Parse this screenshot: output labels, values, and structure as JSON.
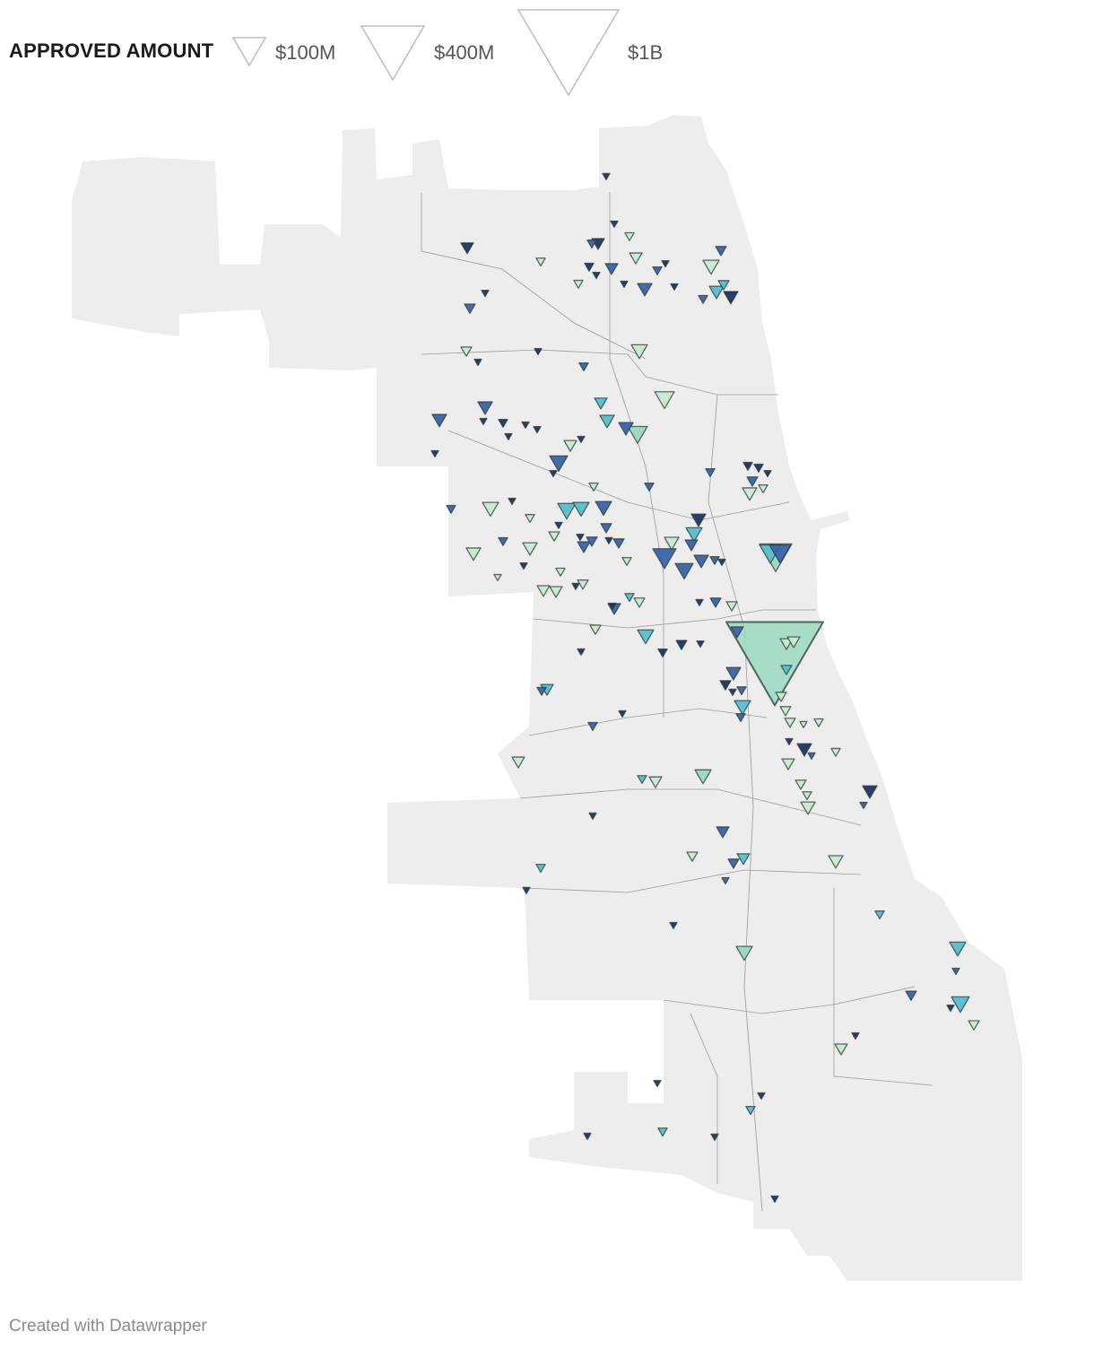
{
  "legend": {
    "title": "APPROVED AMOUNT",
    "items": [
      {
        "label": "$100M",
        "amt": 100
      },
      {
        "label": "$400M",
        "amt": 400
      },
      {
        "label": "$1B",
        "amt": 1000
      }
    ],
    "stroke_color": "#bdbdbd"
  },
  "map": {
    "land_color": "#ededed",
    "boundary_color": "#9a9a9a",
    "marker_stroke": "#2b3a3a",
    "palette": [
      "#1e3461",
      "#3a63a6",
      "#58bfcc",
      "#c8ebcf",
      "#9ad9bf"
    ],
    "markers": [
      {
        "lon": -87.7008,
        "lat": 41.9862,
        "amt": 5,
        "color": "#1e3461"
      },
      {
        "lon": -87.6972,
        "lat": 41.9706,
        "amt": 5,
        "color": "#1e3461"
      },
      {
        "lon": -87.7628,
        "lat": 41.9627,
        "amt": 15,
        "color": "#1e3461"
      },
      {
        "lon": -87.7044,
        "lat": 41.9641,
        "amt": 15,
        "color": "#1e3461"
      },
      {
        "lon": -87.7072,
        "lat": 41.9641,
        "amt": 8,
        "color": "#3a63a6"
      },
      {
        "lon": -87.6904,
        "lat": 41.9665,
        "amt": 8,
        "color": "#c8ebcf"
      },
      {
        "lon": -87.73,
        "lat": 41.9582,
        "amt": 8,
        "color": "#c8ebcf"
      },
      {
        "lon": -87.6876,
        "lat": 41.9594,
        "amt": 15,
        "color": "#c8ebcf"
      },
      {
        "lon": -87.6984,
        "lat": 41.9559,
        "amt": 15,
        "color": "#3a63a6"
      },
      {
        "lon": -87.7084,
        "lat": 41.9565,
        "amt": 8,
        "color": "#1e3461"
      },
      {
        "lon": -87.6744,
        "lat": 41.9576,
        "amt": 5,
        "color": "#1e3461"
      },
      {
        "lon": -87.678,
        "lat": 41.9553,
        "amt": 8,
        "color": "#3a63a6"
      },
      {
        "lon": -87.654,
        "lat": 41.9565,
        "amt": 25,
        "color": "#c8ebcf"
      },
      {
        "lon": -87.6496,
        "lat": 41.9618,
        "amt": 11,
        "color": "#3a63a6"
      },
      {
        "lon": -87.6484,
        "lat": 41.9506,
        "amt": 11,
        "color": "#58bfcc"
      },
      {
        "lon": -87.6836,
        "lat": 41.9491,
        "amt": 20,
        "color": "#3a63a6"
      },
      {
        "lon": -87.6704,
        "lat": 41.95,
        "amt": 5,
        "color": "#1e3461"
      },
      {
        "lon": -87.6928,
        "lat": 41.9509,
        "amt": 5,
        "color": "#1e3461"
      },
      {
        "lon": -87.7052,
        "lat": 41.9538,
        "amt": 5,
        "color": "#1e3461"
      },
      {
        "lon": -87.7132,
        "lat": 41.9509,
        "amt": 8,
        "color": "#c8ebcf"
      },
      {
        "lon": -87.6516,
        "lat": 41.9482,
        "amt": 20,
        "color": "#58bfcc"
      },
      {
        "lon": -87.6452,
        "lat": 41.9465,
        "amt": 20,
        "color": "#1e3461"
      },
      {
        "lon": -87.6576,
        "lat": 41.9459,
        "amt": 8,
        "color": "#3a63a6"
      },
      {
        "lon": -87.7548,
        "lat": 41.9479,
        "amt": 5,
        "color": "#1e3461"
      },
      {
        "lon": -87.7616,
        "lat": 41.9429,
        "amt": 11,
        "color": "#3a63a6"
      },
      {
        "lon": -87.686,
        "lat": 41.9288,
        "amt": 25,
        "color": "#c8ebcf"
      },
      {
        "lon": -87.7312,
        "lat": 41.9288,
        "amt": 5,
        "color": "#1e3461"
      },
      {
        "lon": -87.7632,
        "lat": 41.9288,
        "amt": 11,
        "color": "#c8ebcf"
      },
      {
        "lon": -87.758,
        "lat": 41.9253,
        "amt": 5,
        "color": "#1e3461"
      },
      {
        "lon": -87.7108,
        "lat": 41.9238,
        "amt": 8,
        "color": "#3a63a6"
      },
      {
        "lon": -87.6748,
        "lat": 41.9129,
        "amt": 37,
        "color": "#c8ebcf"
      },
      {
        "lon": -87.7548,
        "lat": 41.9103,
        "amt": 20,
        "color": "#3a63a6"
      },
      {
        "lon": -87.7032,
        "lat": 41.9118,
        "amt": 15,
        "color": "#58bfcc"
      },
      {
        "lon": -87.7752,
        "lat": 41.9062,
        "amt": 20,
        "color": "#3a63a6"
      },
      {
        "lon": -87.7468,
        "lat": 41.9053,
        "amt": 8,
        "color": "#1e3461"
      },
      {
        "lon": -87.7556,
        "lat": 41.9059,
        "amt": 5,
        "color": "#1e3461"
      },
      {
        "lon": -87.7004,
        "lat": 41.9059,
        "amt": 20,
        "color": "#58bfcc"
      },
      {
        "lon": -87.692,
        "lat": 41.9035,
        "amt": 20,
        "color": "#3a63a6"
      },
      {
        "lon": -87.6868,
        "lat": 41.9015,
        "amt": 37,
        "color": "#9ad9bf"
      },
      {
        "lon": -87.7368,
        "lat": 41.9047,
        "amt": 5,
        "color": "#1e3461"
      },
      {
        "lon": -87.7444,
        "lat": 41.9009,
        "amt": 5,
        "color": "#1e3461"
      },
      {
        "lon": -87.7316,
        "lat": 41.9032,
        "amt": 5,
        "color": "#1e3461"
      },
      {
        "lon": -87.7168,
        "lat": 41.8979,
        "amt": 15,
        "color": "#c8ebcf"
      },
      {
        "lon": -87.712,
        "lat": 41.9,
        "amt": 5,
        "color": "#1e3461"
      },
      {
        "lon": -87.7772,
        "lat": 41.8953,
        "amt": 5,
        "color": "#1e3461"
      },
      {
        "lon": -87.722,
        "lat": 41.8921,
        "amt": 31,
        "color": "#3a63a6"
      },
      {
        "lon": -87.7244,
        "lat": 41.8888,
        "amt": 5,
        "color": "#1e3461"
      },
      {
        "lon": -87.6544,
        "lat": 41.8891,
        "amt": 8,
        "color": "#3a63a6"
      },
      {
        "lon": -87.6376,
        "lat": 41.8912,
        "amt": 8,
        "color": "#1e3461"
      },
      {
        "lon": -87.6328,
        "lat": 41.8906,
        "amt": 8,
        "color": "#1e3461"
      },
      {
        "lon": -87.6288,
        "lat": 41.8888,
        "amt": 5,
        "color": "#1e3461"
      },
      {
        "lon": -87.6356,
        "lat": 41.8862,
        "amt": 11,
        "color": "#3a63a6"
      },
      {
        "lon": -87.6368,
        "lat": 41.8821,
        "amt": 20,
        "color": "#c8ebcf"
      },
      {
        "lon": -87.6308,
        "lat": 41.8838,
        "amt": 8,
        "color": "#c8ebcf"
      },
      {
        "lon": -87.7064,
        "lat": 41.8844,
        "amt": 8,
        "color": "#c8ebcf"
      },
      {
        "lon": -87.6816,
        "lat": 41.8844,
        "amt": 8,
        "color": "#3a63a6"
      },
      {
        "lon": -87.77,
        "lat": 41.8771,
        "amt": 8,
        "color": "#3a63a6"
      },
      {
        "lon": -87.7524,
        "lat": 41.8771,
        "amt": 25,
        "color": "#c8ebcf"
      },
      {
        "lon": -87.7184,
        "lat": 41.8765,
        "amt": 31,
        "color": "#58bfcc"
      },
      {
        "lon": -87.712,
        "lat": 41.8771,
        "amt": 25,
        "color": "#58bfcc"
      },
      {
        "lon": -87.702,
        "lat": 41.8774,
        "amt": 25,
        "color": "#3a63a6"
      },
      {
        "lon": -87.6596,
        "lat": 41.8735,
        "amt": 20,
        "color": "#1e3461"
      },
      {
        "lon": -87.7428,
        "lat": 41.8797,
        "amt": 5,
        "color": "#1e3461"
      },
      {
        "lon": -87.7348,
        "lat": 41.8741,
        "amt": 8,
        "color": "#c8ebcf"
      },
      {
        "lon": -87.722,
        "lat": 41.8718,
        "amt": 5,
        "color": "#1e3461"
      },
      {
        "lon": -87.724,
        "lat": 41.8682,
        "amt": 11,
        "color": "#c8ebcf"
      },
      {
        "lon": -87.7008,
        "lat": 41.8709,
        "amt": 11,
        "color": "#3a63a6"
      },
      {
        "lon": -87.7124,
        "lat": 41.8679,
        "amt": 5,
        "color": "#1e3461"
      },
      {
        "lon": -87.7468,
        "lat": 41.8665,
        "amt": 8,
        "color": "#3a63a6"
      },
      {
        "lon": -87.7348,
        "lat": 41.8641,
        "amt": 20,
        "color": "#c8ebcf"
      },
      {
        "lon": -87.7108,
        "lat": 41.8647,
        "amt": 15,
        "color": "#3a63a6"
      },
      {
        "lon": -87.7072,
        "lat": 41.8665,
        "amt": 11,
        "color": "#3a63a6"
      },
      {
        "lon": -87.6952,
        "lat": 41.8659,
        "amt": 11,
        "color": "#3a63a6"
      },
      {
        "lon": -87.6996,
        "lat": 41.8668,
        "amt": 5,
        "color": "#1e3461"
      },
      {
        "lon": -87.6748,
        "lat": 41.8609,
        "amt": 52,
        "color": "#3a63a6"
      },
      {
        "lon": -87.666,
        "lat": 41.8568,
        "amt": 31,
        "color": "#3a63a6"
      },
      {
        "lon": -87.6716,
        "lat": 41.8659,
        "amt": 20,
        "color": "#c8ebcf"
      },
      {
        "lon": -87.6616,
        "lat": 41.8688,
        "amt": 25,
        "color": "#58bfcc"
      },
      {
        "lon": -87.6628,
        "lat": 41.8653,
        "amt": 15,
        "color": "#3a63a6"
      },
      {
        "lon": -87.6584,
        "lat": 41.86,
        "amt": 20,
        "color": "#3a63a6"
      },
      {
        "lon": -87.6524,
        "lat": 41.8603,
        "amt": 8,
        "color": "#3a63a6"
      },
      {
        "lon": -87.6492,
        "lat": 41.8597,
        "amt": 5,
        "color": "#1e3461"
      },
      {
        "lon": -87.76,
        "lat": 41.8624,
        "amt": 20,
        "color": "#c8ebcf"
      },
      {
        "lon": -87.7376,
        "lat": 41.8585,
        "amt": 5,
        "color": "#1e3461"
      },
      {
        "lon": -87.7212,
        "lat": 41.8565,
        "amt": 8,
        "color": "#c8ebcf"
      },
      {
        "lon": -87.6916,
        "lat": 41.86,
        "amt": 8,
        "color": "#c8ebcf"
      },
      {
        "lon": -87.7492,
        "lat": 41.8547,
        "amt": 5,
        "color": "#c8ebcf"
      },
      {
        "lon": -87.7288,
        "lat": 41.8503,
        "amt": 15,
        "color": "#c8ebcf"
      },
      {
        "lon": -87.7232,
        "lat": 41.85,
        "amt": 15,
        "color": "#c8ebcf"
      },
      {
        "lon": -87.7112,
        "lat": 41.8524,
        "amt": 11,
        "color": "#c8ebcf"
      },
      {
        "lon": -87.7144,
        "lat": 41.8518,
        "amt": 5,
        "color": "#1e3461"
      },
      {
        "lon": -87.6252,
        "lat": 41.8612,
        "amt": 100,
        "color": "#9ad9bf"
      },
      {
        "lon": -87.6276,
        "lat": 41.8624,
        "amt": 44,
        "color": "#58bfcc"
      },
      {
        "lon": -87.6232,
        "lat": 41.8624,
        "amt": 44,
        "color": "#3a63a6"
      },
      {
        "lon": -87.6904,
        "lat": 41.8482,
        "amt": 8,
        "color": "#58bfcc"
      },
      {
        "lon": -87.686,
        "lat": 41.8465,
        "amt": 11,
        "color": "#c8ebcf"
      },
      {
        "lon": -87.6972,
        "lat": 41.8444,
        "amt": 15,
        "color": "#3a63a6"
      },
      {
        "lon": -87.698,
        "lat": 41.8453,
        "amt": 5,
        "color": "#1e3461"
      },
      {
        "lon": -87.652,
        "lat": 41.8465,
        "amt": 11,
        "color": "#3a63a6"
      },
      {
        "lon": -87.6592,
        "lat": 41.8465,
        "amt": 5,
        "color": "#1e3461"
      },
      {
        "lon": -87.6448,
        "lat": 41.8453,
        "amt": 11,
        "color": "#c8ebcf"
      },
      {
        "lon": -87.7056,
        "lat": 41.8376,
        "amt": 11,
        "color": "#c8ebcf"
      },
      {
        "lon": -87.6832,
        "lat": 41.8353,
        "amt": 25,
        "color": "#58bfcc"
      },
      {
        "lon": -87.6672,
        "lat": 41.8326,
        "amt": 11,
        "color": "#1e3461"
      },
      {
        "lon": -87.6588,
        "lat": 41.8329,
        "amt": 5,
        "color": "#1e3461"
      },
      {
        "lon": -87.6756,
        "lat": 41.83,
        "amt": 8,
        "color": "#1e3461"
      },
      {
        "lon": -87.712,
        "lat": 41.8303,
        "amt": 5,
        "color": "#1e3461"
      },
      {
        "lon": -87.6256,
        "lat": 41.8265,
        "amt": 900,
        "color": "#9ad9bf"
      },
      {
        "lon": -87.6424,
        "lat": 41.8368,
        "amt": 15,
        "color": "#3a63a6"
      },
      {
        "lon": -87.6204,
        "lat": 41.8329,
        "amt": 15,
        "color": "#c8ebcf"
      },
      {
        "lon": -87.6172,
        "lat": 41.8335,
        "amt": 15,
        "color": "#c8ebcf"
      },
      {
        "lon": -87.6204,
        "lat": 41.8244,
        "amt": 11,
        "color": "#58bfcc"
      },
      {
        "lon": -87.644,
        "lat": 41.8232,
        "amt": 20,
        "color": "#3a63a6"
      },
      {
        "lon": -87.6476,
        "lat": 41.8194,
        "amt": 11,
        "color": "#1e3461"
      },
      {
        "lon": -87.6404,
        "lat": 41.8176,
        "amt": 8,
        "color": "#3a63a6"
      },
      {
        "lon": -87.6444,
        "lat": 41.8171,
        "amt": 5,
        "color": "#1e3461"
      },
      {
        "lon": -87.64,
        "lat": 41.8121,
        "amt": 25,
        "color": "#58bfcc"
      },
      {
        "lon": -87.6408,
        "lat": 41.8088,
        "amt": 8,
        "color": "#3a63a6"
      },
      {
        "lon": -87.6228,
        "lat": 41.8156,
        "amt": 11,
        "color": "#c8ebcf"
      },
      {
        "lon": -87.7272,
        "lat": 41.8179,
        "amt": 15,
        "color": "#58bfcc"
      },
      {
        "lon": -87.7296,
        "lat": 41.8174,
        "amt": 8,
        "color": "#3a63a6"
      },
      {
        "lon": -87.6936,
        "lat": 41.81,
        "amt": 5,
        "color": "#1e3461"
      },
      {
        "lon": -87.7068,
        "lat": 41.8059,
        "amt": 8,
        "color": "#3a63a6"
      },
      {
        "lon": -87.6208,
        "lat": 41.8109,
        "amt": 11,
        "color": "#c8ebcf"
      },
      {
        "lon": -87.6188,
        "lat": 41.8071,
        "amt": 11,
        "color": "#c8ebcf"
      },
      {
        "lon": -87.6128,
        "lat": 41.8065,
        "amt": 5,
        "color": "#c8ebcf"
      },
      {
        "lon": -87.606,
        "lat": 41.8071,
        "amt": 8,
        "color": "#c8ebcf"
      },
      {
        "lon": -87.6124,
        "lat": 41.7982,
        "amt": 20,
        "color": "#1e3461"
      },
      {
        "lon": -87.6092,
        "lat": 41.7962,
        "amt": 5,
        "color": "#3a63a6"
      },
      {
        "lon": -87.6192,
        "lat": 41.8009,
        "amt": 5,
        "color": "#1e3461"
      },
      {
        "lon": -87.6196,
        "lat": 41.7935,
        "amt": 15,
        "color": "#c8ebcf"
      },
      {
        "lon": -87.5984,
        "lat": 41.7974,
        "amt": 8,
        "color": "#c8ebcf"
      },
      {
        "lon": -87.74,
        "lat": 41.7941,
        "amt": 15,
        "color": "#c8ebcf"
      },
      {
        "lon": -87.6848,
        "lat": 41.7885,
        "amt": 8,
        "color": "#58bfcc"
      },
      {
        "lon": -87.6788,
        "lat": 41.7876,
        "amt": 15,
        "color": "#c8ebcf"
      },
      {
        "lon": -87.6576,
        "lat": 41.7894,
        "amt": 25,
        "color": "#9ad9bf"
      },
      {
        "lon": -87.614,
        "lat": 41.7868,
        "amt": 11,
        "color": "#c8ebcf"
      },
      {
        "lon": -87.5832,
        "lat": 41.7844,
        "amt": 20,
        "color": "#1e3461"
      },
      {
        "lon": -87.586,
        "lat": 41.78,
        "amt": 5,
        "color": "#3a63a6"
      },
      {
        "lon": -87.6112,
        "lat": 41.7832,
        "amt": 8,
        "color": "#c8ebcf"
      },
      {
        "lon": -87.6108,
        "lat": 41.7791,
        "amt": 20,
        "color": "#c8ebcf"
      },
      {
        "lon": -87.7068,
        "lat": 41.7765,
        "amt": 5,
        "color": "#1e3461"
      },
      {
        "lon": -87.6488,
        "lat": 41.7712,
        "amt": 15,
        "color": "#3a63a6"
      },
      {
        "lon": -87.6624,
        "lat": 41.7632,
        "amt": 11,
        "color": "#c8ebcf"
      },
      {
        "lon": -87.6396,
        "lat": 41.7624,
        "amt": 15,
        "color": "#58bfcc"
      },
      {
        "lon": -87.644,
        "lat": 41.7609,
        "amt": 11,
        "color": "#3a63a6"
      },
      {
        "lon": -87.5984,
        "lat": 41.7615,
        "amt": 20,
        "color": "#c8ebcf"
      },
      {
        "lon": -87.73,
        "lat": 41.7594,
        "amt": 8,
        "color": "#58bfcc"
      },
      {
        "lon": -87.6476,
        "lat": 41.7553,
        "amt": 5,
        "color": "#3a63a6"
      },
      {
        "lon": -87.7364,
        "lat": 41.7521,
        "amt": 5,
        "color": "#1e3461"
      },
      {
        "lon": -87.5788,
        "lat": 41.7441,
        "amt": 8,
        "color": "#58bfcc"
      },
      {
        "lon": -87.6708,
        "lat": 41.7406,
        "amt": 5,
        "color": "#1e3461"
      },
      {
        "lon": -87.6392,
        "lat": 41.7315,
        "amt": 25,
        "color": "#9ad9bf"
      },
      {
        "lon": -87.544,
        "lat": 41.7329,
        "amt": 25,
        "color": "#58bfcc"
      },
      {
        "lon": -87.5448,
        "lat": 41.7256,
        "amt": 5,
        "color": "#3a63a6"
      },
      {
        "lon": -87.5648,
        "lat": 41.7176,
        "amt": 11,
        "color": "#3a63a6"
      },
      {
        "lon": -87.5428,
        "lat": 41.7147,
        "amt": 31,
        "color": "#58bfcc"
      },
      {
        "lon": -87.5472,
        "lat": 41.7135,
        "amt": 5,
        "color": "#1e3461"
      },
      {
        "lon": -87.5368,
        "lat": 41.7079,
        "amt": 11,
        "color": "#c8ebcf"
      },
      {
        "lon": -87.5896,
        "lat": 41.7044,
        "amt": 5,
        "color": "#1e3461"
      },
      {
        "lon": -87.596,
        "lat": 41.7,
        "amt": 15,
        "color": "#c8ebcf"
      },
      {
        "lon": -87.6316,
        "lat": 41.6847,
        "amt": 5,
        "color": "#1e3461"
      },
      {
        "lon": -87.6364,
        "lat": 41.68,
        "amt": 8,
        "color": "#58bfcc"
      },
      {
        "lon": -87.678,
        "lat": 41.6888,
        "amt": 5,
        "color": "#1e3461"
      },
      {
        "lon": -87.6756,
        "lat": 41.6729,
        "amt": 8,
        "color": "#58bfcc"
      },
      {
        "lon": -87.6524,
        "lat": 41.6712,
        "amt": 5,
        "color": "#1e3461"
      },
      {
        "lon": -87.7092,
        "lat": 41.6715,
        "amt": 5,
        "color": "#1e3461"
      },
      {
        "lon": -87.6256,
        "lat": 41.6509,
        "amt": 5,
        "color": "#1e3461"
      }
    ]
  },
  "footer": {
    "credit": "Created with Datawrapper"
  }
}
